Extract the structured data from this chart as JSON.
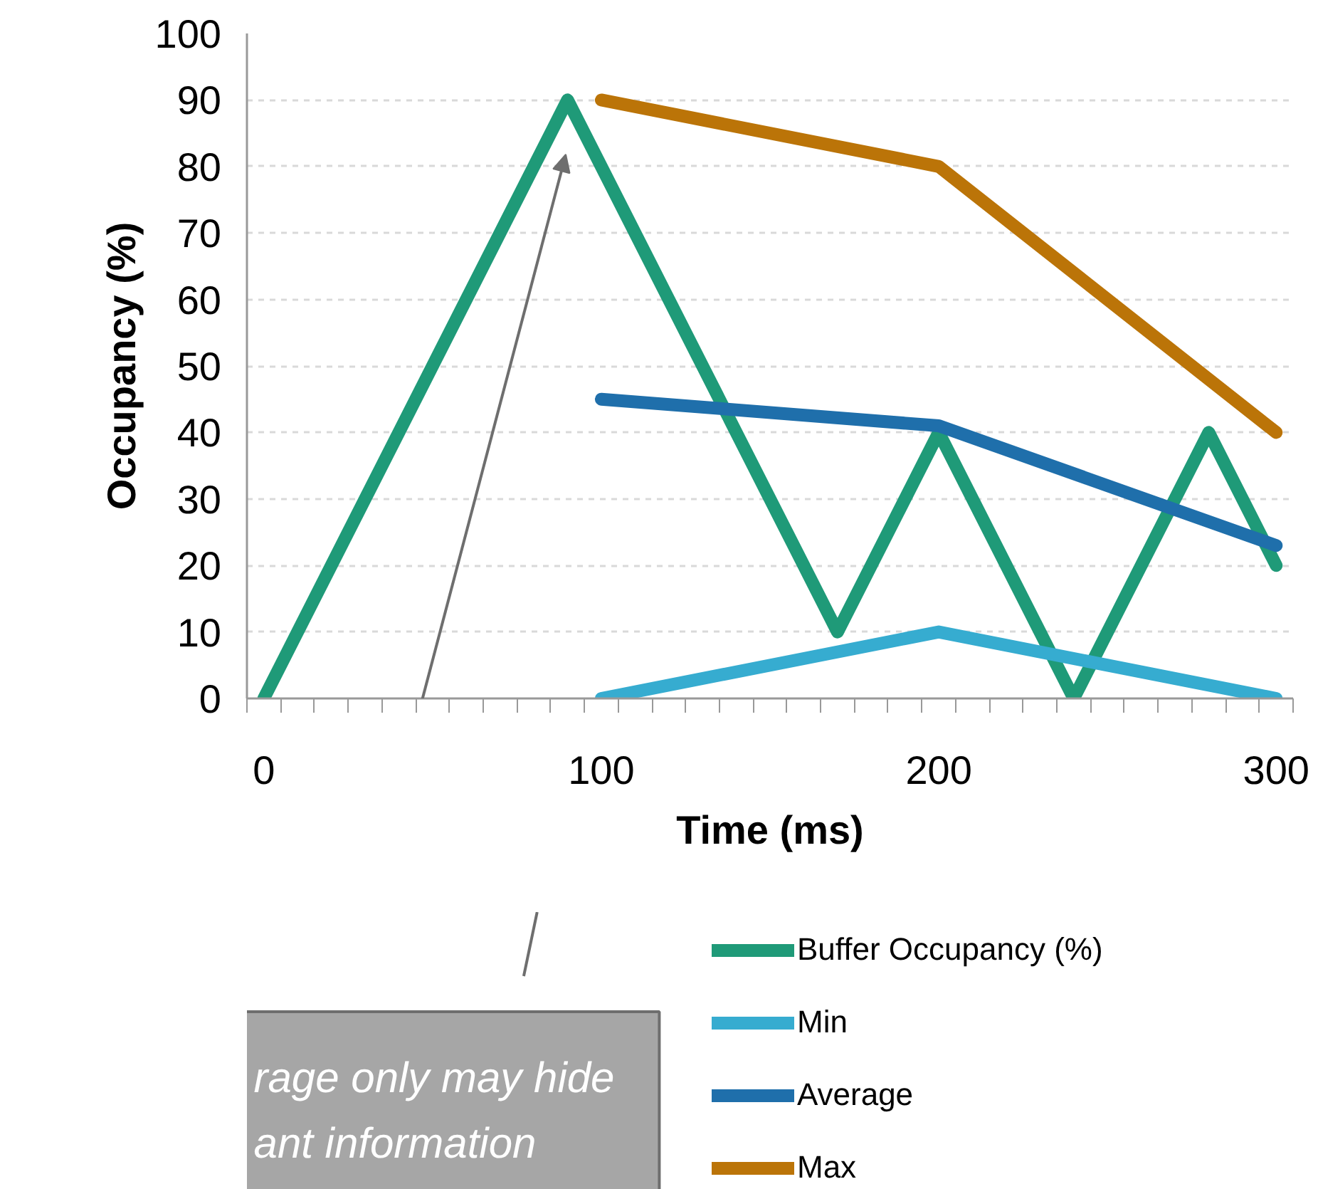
{
  "chart_data": {
    "type": "line",
    "xlabel": "Time (ms)",
    "ylabel": "Occupancy (%)",
    "xlim": [
      -5,
      305
    ],
    "ylim": [
      0,
      100
    ],
    "xticks": [
      0,
      100,
      200,
      300,
      {
        "value": -5,
        "label": null
      },
      {
        "value": 5,
        "label": null
      },
      {
        "value": 15,
        "label": null
      },
      {
        "value": 25,
        "label": null
      },
      {
        "value": 35,
        "label": null
      },
      {
        "value": 45,
        "label": null
      },
      {
        "value": 55,
        "label": null
      },
      {
        "value": 65,
        "label": null
      },
      {
        "value": 75,
        "label": null
      },
      {
        "value": 85,
        "label": null
      },
      {
        "value": 95,
        "label": null
      },
      {
        "value": 105,
        "label": null
      },
      {
        "value": 115,
        "label": null
      },
      {
        "value": 125,
        "label": null
      },
      {
        "value": 135,
        "label": null
      },
      {
        "value": 145,
        "label": null
      },
      {
        "value": 155,
        "label": null
      },
      {
        "value": 165,
        "label": null
      },
      {
        "value": 175,
        "label": null
      },
      {
        "value": 185,
        "label": null
      },
      {
        "value": 195,
        "label": null
      },
      {
        "value": 205,
        "label": null
      },
      {
        "value": 215,
        "label": null
      },
      {
        "value": 225,
        "label": null
      },
      {
        "value": 235,
        "label": null
      },
      {
        "value": 245,
        "label": null
      },
      {
        "value": 255,
        "label": null
      },
      {
        "value": 265,
        "label": null
      },
      {
        "value": 275,
        "label": null
      },
      {
        "value": 285,
        "label": null
      },
      {
        "value": 295,
        "label": null
      },
      {
        "value": 305,
        "label": null
      }
    ],
    "yticks": [
      0,
      10,
      20,
      30,
      40,
      50,
      60,
      70,
      80,
      90,
      100
    ],
    "grid": "y",
    "legend": "bottom",
    "series": [
      {
        "name": "Buffer Occupancy (%)",
        "color": "#1f9a78",
        "x": [
          0,
          90,
          170,
          200,
          240,
          280,
          300
        ],
        "values": [
          0,
          90,
          10,
          40,
          0,
          40,
          20
        ]
      },
      {
        "name": "Min",
        "color": "#36acd0",
        "x": [
          100,
          200,
          300
        ],
        "values": [
          0,
          10,
          0
        ]
      },
      {
        "name": "Average",
        "color": "#1f6fab",
        "x": [
          100,
          200,
          300
        ],
        "values": [
          45,
          41,
          23
        ]
      },
      {
        "name": "Max",
        "color": "#bb7408",
        "x": [
          100,
          200,
          300
        ],
        "values": [
          90,
          80,
          40
        ]
      }
    ],
    "annotations": [
      "rage only may hide\nant information"
    ]
  }
}
